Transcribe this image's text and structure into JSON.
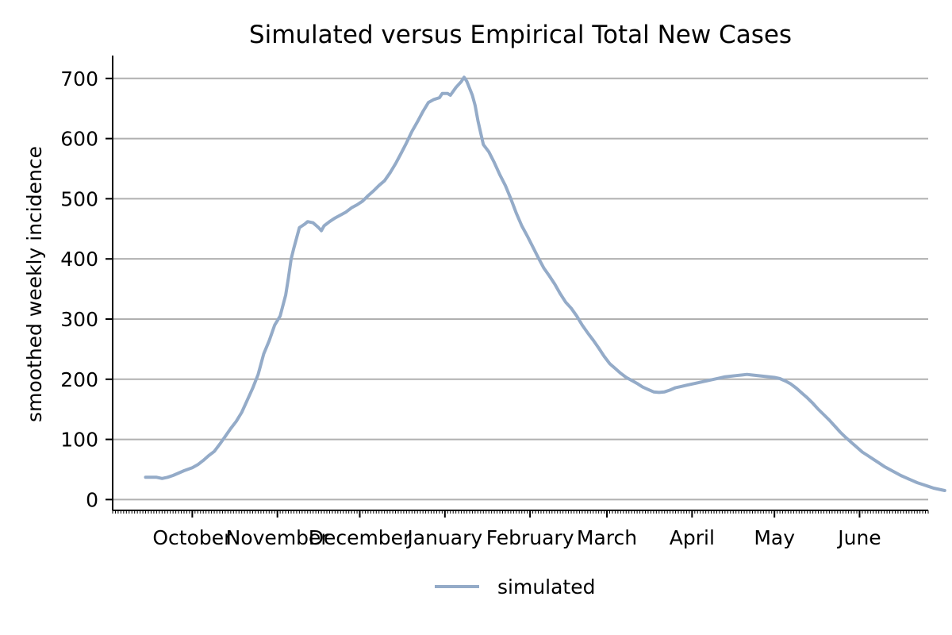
{
  "chart_data": {
    "type": "line",
    "title": "Simulated versus Empirical Total New Cases",
    "xlabel": "",
    "ylabel": "smoothed weekly incidence",
    "x_tick_labels": [
      "October",
      "November",
      "December",
      "January",
      "February",
      "March",
      "April",
      "May",
      "June"
    ],
    "x_ticks_day_index": [
      20,
      51,
      81,
      112,
      143,
      171,
      202,
      232,
      263
    ],
    "x_range_day_index": [
      -9,
      288
    ],
    "y_ticks": [
      0,
      100,
      200,
      300,
      400,
      500,
      600,
      700
    ],
    "ylim": [
      -18,
      738
    ],
    "grid": "horizontal",
    "legend_position": "bottom-center",
    "series": [
      {
        "name": "simulated",
        "color": "#94abc8",
        "points": [
          [
            3,
            37
          ],
          [
            7,
            37
          ],
          [
            9,
            35
          ],
          [
            11,
            37
          ],
          [
            13,
            40
          ],
          [
            15,
            44
          ],
          [
            17,
            48
          ],
          [
            20,
            53
          ],
          [
            22,
            58
          ],
          [
            24,
            65
          ],
          [
            26,
            73
          ],
          [
            28,
            80
          ],
          [
            30,
            92
          ],
          [
            32,
            105
          ],
          [
            34,
            118
          ],
          [
            36,
            130
          ],
          [
            38,
            145
          ],
          [
            40,
            165
          ],
          [
            42,
            185
          ],
          [
            44,
            208
          ],
          [
            46,
            242
          ],
          [
            48,
            264
          ],
          [
            50,
            290
          ],
          [
            52,
            305
          ],
          [
            54,
            340
          ],
          [
            55,
            368
          ],
          [
            56,
            400
          ],
          [
            57,
            418
          ],
          [
            58,
            435
          ],
          [
            59,
            452
          ],
          [
            61,
            458
          ],
          [
            62,
            462
          ],
          [
            64,
            460
          ],
          [
            66,
            452
          ],
          [
            67,
            447
          ],
          [
            68,
            455
          ],
          [
            70,
            462
          ],
          [
            72,
            468
          ],
          [
            74,
            473
          ],
          [
            76,
            478
          ],
          [
            78,
            485
          ],
          [
            80,
            490
          ],
          [
            82,
            496
          ],
          [
            84,
            505
          ],
          [
            86,
            513
          ],
          [
            88,
            522
          ],
          [
            90,
            530
          ],
          [
            92,
            543
          ],
          [
            94,
            558
          ],
          [
            96,
            575
          ],
          [
            98,
            593
          ],
          [
            100,
            612
          ],
          [
            102,
            628
          ],
          [
            104,
            645
          ],
          [
            106,
            660
          ],
          [
            108,
            665
          ],
          [
            110,
            668
          ],
          [
            111,
            675
          ],
          [
            113,
            675
          ],
          [
            114,
            672
          ],
          [
            116,
            685
          ],
          [
            118,
            695
          ],
          [
            119,
            702
          ],
          [
            120,
            695
          ],
          [
            122,
            672
          ],
          [
            123,
            655
          ],
          [
            124,
            630
          ],
          [
            125,
            610
          ],
          [
            126,
            590
          ],
          [
            128,
            578
          ],
          [
            130,
            560
          ],
          [
            132,
            540
          ],
          [
            134,
            522
          ],
          [
            136,
            500
          ],
          [
            138,
            476
          ],
          [
            140,
            455
          ],
          [
            142,
            438
          ],
          [
            144,
            420
          ],
          [
            146,
            402
          ],
          [
            148,
            385
          ],
          [
            150,
            372
          ],
          [
            152,
            358
          ],
          [
            154,
            342
          ],
          [
            156,
            328
          ],
          [
            158,
            318
          ],
          [
            160,
            305
          ],
          [
            162,
            290
          ],
          [
            164,
            277
          ],
          [
            166,
            265
          ],
          [
            168,
            252
          ],
          [
            170,
            238
          ],
          [
            172,
            226
          ],
          [
            174,
            218
          ],
          [
            176,
            210
          ],
          [
            178,
            203
          ],
          [
            180,
            198
          ],
          [
            182,
            193
          ],
          [
            184,
            187
          ],
          [
            186,
            183
          ],
          [
            188,
            179
          ],
          [
            190,
            178
          ],
          [
            192,
            179
          ],
          [
            194,
            182
          ],
          [
            196,
            186
          ],
          [
            198,
            188
          ],
          [
            200,
            190
          ],
          [
            202,
            192
          ],
          [
            204,
            194
          ],
          [
            206,
            196
          ],
          [
            208,
            198
          ],
          [
            210,
            200
          ],
          [
            212,
            202
          ],
          [
            214,
            204
          ],
          [
            216,
            205
          ],
          [
            218,
            206
          ],
          [
            220,
            207
          ],
          [
            222,
            208
          ],
          [
            224,
            207
          ],
          [
            226,
            206
          ],
          [
            228,
            205
          ],
          [
            230,
            204
          ],
          [
            232,
            203
          ],
          [
            234,
            201
          ],
          [
            236,
            197
          ],
          [
            238,
            192
          ],
          [
            240,
            185
          ],
          [
            242,
            177
          ],
          [
            244,
            169
          ],
          [
            246,
            160
          ],
          [
            248,
            150
          ],
          [
            250,
            141
          ],
          [
            252,
            132
          ],
          [
            254,
            122
          ],
          [
            256,
            112
          ],
          [
            258,
            103
          ],
          [
            260,
            95
          ],
          [
            262,
            87
          ],
          [
            264,
            79
          ],
          [
            266,
            73
          ],
          [
            268,
            67
          ],
          [
            270,
            61
          ],
          [
            272,
            55
          ],
          [
            274,
            50
          ],
          [
            276,
            45
          ],
          [
            278,
            40
          ],
          [
            280,
            36
          ],
          [
            282,
            32
          ],
          [
            284,
            28
          ],
          [
            286,
            25
          ],
          [
            288,
            22
          ],
          [
            290,
            19
          ],
          [
            292,
            17
          ],
          [
            294,
            15
          ]
        ]
      }
    ]
  }
}
